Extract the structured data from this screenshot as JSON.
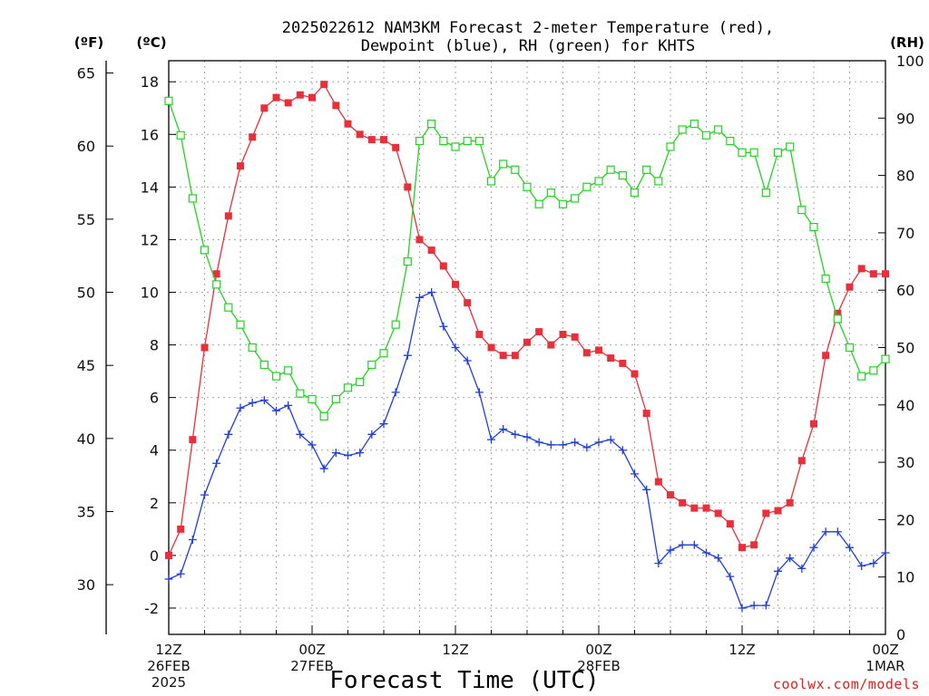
{
  "title_line1": "2025022612 NAM3KM Forecast 2-meter Temperature (red),",
  "title_line2": "Dewpoint (blue), RH (green) for KHTS",
  "axis_units": {
    "fahrenheit": "(ºF)",
    "celsius": "(ºC)",
    "rh": "(RH)"
  },
  "xaxis_title": "Forecast Time (UTC)",
  "credit": "coolwx.com/models",
  "colors": {
    "temperature": "#e8303a",
    "dewpoint": "#1f3fd9",
    "rh": "#1fd61f",
    "grid": "#a8a8a8"
  },
  "chart_data": {
    "type": "line",
    "grid": true,
    "celsius_axis": {
      "range": [
        -3,
        18.8
      ],
      "ticks": [
        -2,
        0,
        2,
        4,
        6,
        8,
        10,
        12,
        14,
        16,
        18
      ]
    },
    "fahrenheit_axis": {
      "ticks": [
        30,
        35,
        40,
        45,
        50,
        55,
        60,
        65
      ]
    },
    "rh_axis": {
      "range": [
        0,
        100
      ],
      "ticks": [
        0,
        10,
        20,
        30,
        40,
        50,
        60,
        70,
        80,
        90,
        100
      ]
    },
    "x_axis": {
      "unit": "forecast hour",
      "range": [
        0,
        60
      ],
      "tick_hours": [
        0,
        12,
        24,
        36,
        48,
        60
      ],
      "labels": [
        {
          "hour": 0,
          "lines": [
            "12Z",
            "26FEB",
            "2025"
          ]
        },
        {
          "hour": 12,
          "lines": [
            "00Z",
            "27FEB"
          ]
        },
        {
          "hour": 24,
          "lines": [
            "12Z"
          ]
        },
        {
          "hour": 36,
          "lines": [
            "00Z",
            "28FEB"
          ]
        },
        {
          "hour": 48,
          "lines": [
            "12Z"
          ]
        },
        {
          "hour": 60,
          "lines": [
            "00Z",
            "1MAR"
          ]
        }
      ]
    },
    "hours": [
      0,
      1,
      2,
      3,
      4,
      5,
      6,
      7,
      8,
      9,
      10,
      11,
      12,
      13,
      14,
      15,
      16,
      17,
      18,
      19,
      20,
      21,
      22,
      23,
      24,
      25,
      26,
      27,
      28,
      29,
      30,
      31,
      32,
      33,
      34,
      35,
      36,
      37,
      38,
      39,
      40,
      41,
      42,
      43,
      44,
      45,
      46,
      47,
      48,
      49,
      50,
      51,
      52,
      53,
      54,
      55,
      56,
      57,
      58,
      59,
      60
    ],
    "series": [
      {
        "name": "Temperature",
        "key": "temperature",
        "unit": "°C",
        "marker": "square-filled",
        "values": [
          0.0,
          1.0,
          4.4,
          7.9,
          10.7,
          12.9,
          14.8,
          15.9,
          17.0,
          17.4,
          17.2,
          17.5,
          17.4,
          17.9,
          17.1,
          16.4,
          16.0,
          15.8,
          15.8,
          15.5,
          14.0,
          12.0,
          11.6,
          11.0,
          10.3,
          9.6,
          8.4,
          7.9,
          7.6,
          7.6,
          8.1,
          8.5,
          8.0,
          8.4,
          8.3,
          7.7,
          7.8,
          7.5,
          7.3,
          6.9,
          5.4,
          2.8,
          2.3,
          2.0,
          1.8,
          1.8,
          1.6,
          1.2,
          0.3,
          0.4,
          1.6,
          1.7,
          2.0,
          3.6,
          5.0,
          7.6,
          9.2,
          10.2,
          10.9,
          10.7,
          10.7
        ]
      },
      {
        "name": "Dewpoint",
        "key": "dewpoint",
        "unit": "°C",
        "marker": "plus",
        "values": [
          -0.9,
          -0.7,
          0.6,
          2.3,
          3.5,
          4.6,
          5.6,
          5.8,
          5.9,
          5.5,
          5.7,
          4.6,
          4.2,
          3.3,
          3.9,
          3.8,
          3.9,
          4.6,
          5.0,
          6.2,
          7.6,
          9.8,
          10.0,
          8.7,
          7.9,
          7.4,
          6.2,
          4.4,
          4.8,
          4.6,
          4.5,
          4.3,
          4.2,
          4.2,
          4.3,
          4.1,
          4.3,
          4.4,
          4.0,
          3.1,
          2.5,
          -0.3,
          0.2,
          0.4,
          0.4,
          0.1,
          -0.1,
          -0.8,
          -2.0,
          -1.9,
          -1.9,
          -0.6,
          -0.1,
          -0.5,
          0.3,
          0.9,
          0.9,
          0.3,
          -0.4,
          -0.3,
          0.1
        ]
      },
      {
        "name": "RH",
        "key": "rh",
        "unit": "%",
        "axis": "right",
        "marker": "square-open",
        "values": [
          93,
          87,
          76,
          67,
          61,
          57,
          54,
          50,
          47,
          45,
          46,
          42,
          41,
          38,
          41,
          43,
          44,
          47,
          49,
          54,
          65,
          86,
          89,
          86,
          85,
          86,
          86,
          79,
          82,
          81,
          78,
          75,
          77,
          75,
          76,
          78,
          79,
          81,
          80,
          77,
          81,
          79,
          85,
          88,
          89,
          87,
          88,
          86,
          84,
          84,
          77,
          84,
          85,
          74,
          71,
          62,
          55,
          50,
          45,
          46,
          48
        ]
      }
    ]
  }
}
